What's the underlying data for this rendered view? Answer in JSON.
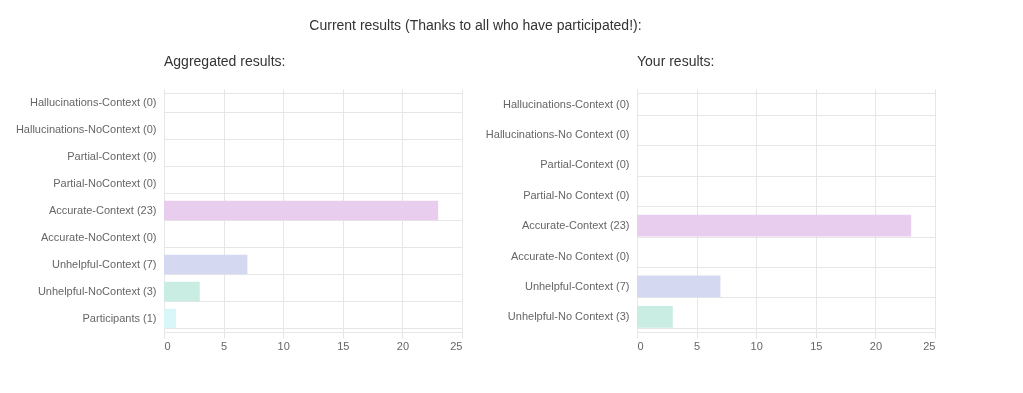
{
  "chart_data": [
    {
      "type": "bar",
      "orientation": "horizontal",
      "title": "Aggregated results:",
      "annotations": [
        "Current results (Thanks to all who have participated!):"
      ],
      "categories": [
        "Hallucinations-Context (0)",
        "Hallucinations-NoContext (0)",
        "Partial-Context (0)",
        "Partial-NoContext (0)",
        "Accurate-Context (23)",
        "Accurate-NoContext (0)",
        "Unhelpful-Context (7)",
        "Unhelpful-NoContext (3)",
        "Participants (1)"
      ],
      "values": [
        0,
        0,
        0,
        0,
        23,
        0,
        7,
        3,
        1
      ],
      "colors": [
        "#f6d2d9",
        "#fbe3cc",
        "#fdf0cc",
        "#d2ecec",
        "#e9cdee",
        "#d9ecf8",
        "#d5d8f1",
        "#c9ece3",
        "#d9f6f9"
      ],
      "xlim": [
        0,
        25
      ],
      "xticks": [
        0,
        5,
        10,
        15,
        20,
        25
      ],
      "grid": true
    },
    {
      "type": "bar",
      "orientation": "horizontal",
      "title": "Your results:",
      "categories": [
        "Hallucinations-Context (0)",
        "Hallucinations-No Context (0)",
        "Partial-Context (0)",
        "Partial-No Context (0)",
        "Accurate-Context (23)",
        "Accurate-No Context (0)",
        "Unhelpful-Context (7)",
        "Unhelpful-No Context (3)"
      ],
      "values": [
        0,
        0,
        0,
        0,
        23,
        0,
        7,
        3
      ],
      "colors": [
        "#f6d2d9",
        "#fbe3cc",
        "#fdf0cc",
        "#d2ecec",
        "#e9cdee",
        "#d9ecf8",
        "#d5d8f1",
        "#c9ece3"
      ],
      "xlim": [
        0,
        25
      ],
      "xticks": [
        0,
        5,
        10,
        15,
        20,
        25
      ],
      "grid": true
    }
  ]
}
